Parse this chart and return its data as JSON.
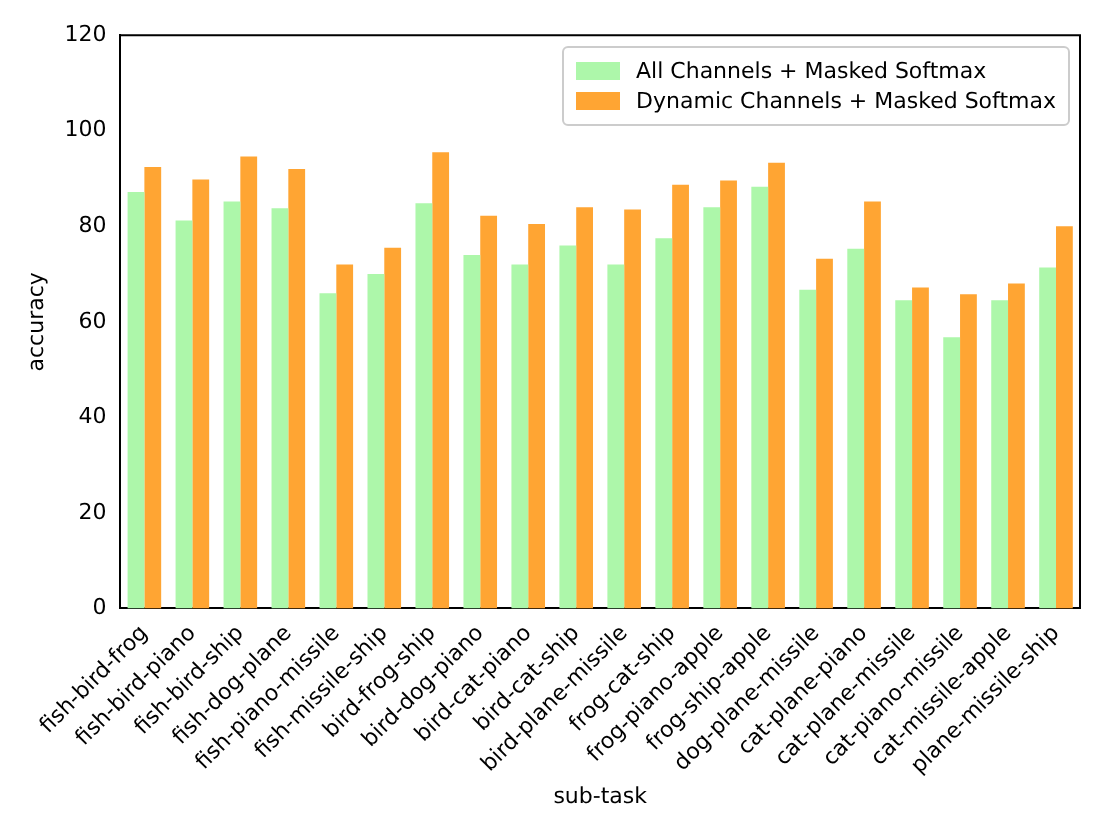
{
  "chart_data": {
    "type": "bar",
    "xlabel": "sub-task",
    "ylabel": "accuracy",
    "categories": [
      "fish-bird-frog",
      "fish-bird-piano",
      "fish-bird-ship",
      "fish-dog-plane",
      "fish-piano-missile",
      "fish-missile-ship",
      "bird-frog-ship",
      "bird-dog-piano",
      "bird-cat-piano",
      "bird-cat-ship",
      "bird-plane-missile",
      "frog-cat-ship",
      "frog-piano-apple",
      "frog-ship-apple",
      "dog-plane-missile",
      "cat-plane-piano",
      "cat-plane-missile",
      "cat-piano-missile",
      "cat-missile-apple",
      "plane-missile-ship"
    ],
    "series": [
      {
        "name": "All Channels + Masked Softmax",
        "color": "#adf7aa",
        "values": [
          87.2,
          81.2,
          85.2,
          83.8,
          66,
          70,
          84.8,
          74,
          72,
          76,
          72,
          77.5,
          84,
          88.3,
          66.7,
          75.3,
          64.5,
          56.8,
          64.5,
          71.4
        ]
      },
      {
        "name": "Dynamic Channels + Masked Softmax",
        "color": "#ffa533",
        "values": [
          92.4,
          89.8,
          94.6,
          92,
          72,
          75.5,
          95.5,
          82.2,
          80.5,
          84,
          83.5,
          88.7,
          89.6,
          93.3,
          73.2,
          85.2,
          67.2,
          65.8,
          68,
          80
        ]
      }
    ],
    "ylim": [
      0,
      120
    ],
    "yticks": [
      0,
      20,
      40,
      60,
      80,
      100,
      120
    ],
    "legend": "top right"
  }
}
